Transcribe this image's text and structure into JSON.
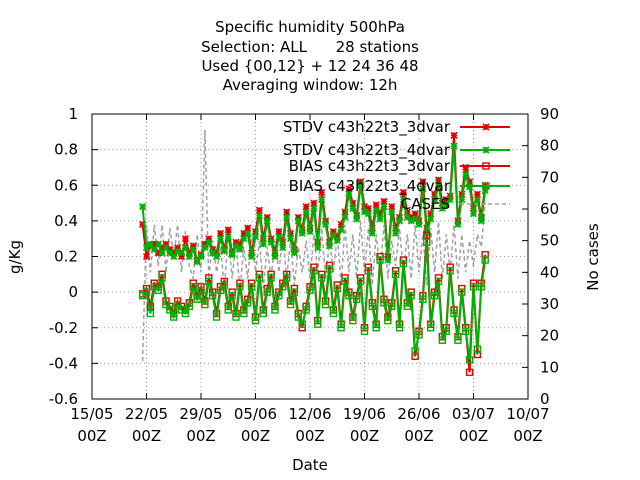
{
  "chart_data": {
    "type": "line",
    "title_lines": [
      "Specific humidity 500hPa",
      "Selection: ALL      28 stations",
      "Used {00,12} + 12 24 36 48",
      "Averaging window: 12h"
    ],
    "xlabel": "Date",
    "ylabel": "g/Kg",
    "y2label": "No cases",
    "xlim": [
      0,
      56
    ],
    "ylim": [
      -0.6,
      1.0
    ],
    "y2lim": [
      0,
      90
    ],
    "x_ticks": [
      {
        "x": 0,
        "label1": "15/05",
        "label2": "00Z"
      },
      {
        "x": 7,
        "label1": "22/05",
        "label2": "00Z"
      },
      {
        "x": 14,
        "label1": "29/05",
        "label2": "00Z"
      },
      {
        "x": 21,
        "label1": "05/06",
        "label2": "00Z"
      },
      {
        "x": 28,
        "label1": "12/06",
        "label2": "00Z"
      },
      {
        "x": 35,
        "label1": "19/06",
        "label2": "00Z"
      },
      {
        "x": 42,
        "label1": "26/06",
        "label2": "00Z"
      },
      {
        "x": 49,
        "label1": "03/07",
        "label2": "00Z"
      },
      {
        "x": 56,
        "label1": "10/07",
        "label2": "00Z"
      }
    ],
    "y_ticks": [
      "-0.6",
      "-0.4",
      "-0.2",
      "0",
      "0.2",
      "0.4",
      "0.6",
      "0.8",
      "1"
    ],
    "y_tick_values": [
      -0.6,
      -0.4,
      -0.2,
      0,
      0.2,
      0.4,
      0.6,
      0.8,
      1.0
    ],
    "y2_ticks": [
      "0",
      "10",
      "20",
      "30",
      "40",
      "50",
      "60",
      "70",
      "80",
      "90"
    ],
    "y2_tick_values": [
      0,
      10,
      20,
      30,
      40,
      50,
      60,
      70,
      80,
      90
    ],
    "grid": true,
    "legend_position": "top-right",
    "series": [
      {
        "name": "STDV c43h22t3_3dvar",
        "axis": "left",
        "color": "#e00000",
        "marker": "x",
        "x": [
          6.5,
          7,
          7.5,
          8,
          8.5,
          9,
          9.5,
          10,
          10.5,
          11,
          11.5,
          12,
          12.5,
          13,
          13.5,
          14,
          14.5,
          15,
          15.5,
          16,
          16.5,
          17,
          17.5,
          18,
          18.5,
          19,
          19.5,
          20,
          20.5,
          21,
          21.5,
          22,
          22.5,
          23,
          23.5,
          24,
          24.5,
          25,
          25.5,
          26,
          26.5,
          27,
          27.5,
          28,
          28.5,
          29,
          29.5,
          30,
          30.5,
          31,
          31.5,
          32,
          32.5,
          33,
          33.5,
          34,
          34.5,
          35,
          35.5,
          36,
          36.5,
          37,
          37.5,
          38,
          38.5,
          39,
          39.5,
          40,
          40.5,
          41,
          41.5,
          42,
          42.5,
          43,
          43.5,
          44,
          44.5,
          45,
          45.5,
          46,
          46.5,
          47,
          47.5,
          48,
          48.5,
          49,
          49.5,
          50,
          50.5
        ],
        "values": [
          0.38,
          0.2,
          0.26,
          0.27,
          0.22,
          0.25,
          0.27,
          0.24,
          0.22,
          0.25,
          0.2,
          0.3,
          0.22,
          0.26,
          0.18,
          0.21,
          0.27,
          0.3,
          0.24,
          0.22,
          0.33,
          0.24,
          0.35,
          0.22,
          0.28,
          0.27,
          0.33,
          0.36,
          0.22,
          0.34,
          0.46,
          0.3,
          0.42,
          0.3,
          0.22,
          0.34,
          0.28,
          0.45,
          0.33,
          0.24,
          0.42,
          0.35,
          0.48,
          0.36,
          0.5,
          0.28,
          0.56,
          0.4,
          0.28,
          0.34,
          0.31,
          0.38,
          0.45,
          0.58,
          0.5,
          0.43,
          0.62,
          0.48,
          0.47,
          0.36,
          0.49,
          0.44,
          0.51,
          0.2,
          0.48,
          0.36,
          0.42,
          0.56,
          0.45,
          0.42,
          0.44,
          0.4,
          0.62,
          0.36,
          0.44,
          0.55,
          0.63,
          0.5,
          0.52,
          0.54,
          0.88,
          0.4,
          0.55,
          0.7,
          0.62,
          0.47,
          0.55,
          0.42,
          0.6
        ]
      },
      {
        "name": "STDV c43h22t3_4dvar",
        "axis": "left",
        "color": "#00b000",
        "marker": "x",
        "x": [
          6.5,
          7,
          7.5,
          8,
          8.5,
          9,
          9.5,
          10,
          10.5,
          11,
          11.5,
          12,
          12.5,
          13,
          13.5,
          14,
          14.5,
          15,
          15.5,
          16,
          16.5,
          17,
          17.5,
          18,
          18.5,
          19,
          19.5,
          20,
          20.5,
          21,
          21.5,
          22,
          22.5,
          23,
          23.5,
          24,
          24.5,
          25,
          25.5,
          26,
          26.5,
          27,
          27.5,
          28,
          28.5,
          29,
          29.5,
          30,
          30.5,
          31,
          31.5,
          32,
          32.5,
          33,
          33.5,
          34,
          34.5,
          35,
          35.5,
          36,
          36.5,
          37,
          37.5,
          38,
          38.5,
          39,
          39.5,
          40,
          40.5,
          41,
          41.5,
          42,
          42.5,
          43,
          43.5,
          44,
          44.5,
          45,
          45.5,
          46,
          46.5,
          47,
          47.5,
          48,
          48.5,
          49,
          49.5,
          50,
          50.5
        ],
        "values": [
          0.48,
          0.25,
          0.27,
          0.24,
          0.27,
          0.22,
          0.25,
          0.22,
          0.2,
          0.23,
          0.22,
          0.25,
          0.2,
          0.24,
          0.17,
          0.2,
          0.25,
          0.28,
          0.22,
          0.2,
          0.3,
          0.23,
          0.31,
          0.21,
          0.26,
          0.24,
          0.3,
          0.33,
          0.2,
          0.31,
          0.43,
          0.27,
          0.4,
          0.28,
          0.2,
          0.31,
          0.25,
          0.42,
          0.3,
          0.22,
          0.4,
          0.33,
          0.45,
          0.34,
          0.47,
          0.25,
          0.52,
          0.38,
          0.26,
          0.32,
          0.29,
          0.35,
          0.42,
          0.55,
          0.47,
          0.41,
          0.6,
          0.45,
          0.44,
          0.33,
          0.46,
          0.41,
          0.48,
          0.18,
          0.45,
          0.33,
          0.4,
          0.52,
          0.42,
          0.4,
          0.41,
          0.38,
          0.58,
          0.33,
          0.41,
          0.52,
          0.6,
          0.47,
          0.49,
          0.52,
          0.82,
          0.38,
          0.52,
          0.66,
          0.59,
          0.44,
          0.52,
          0.4,
          0.57
        ]
      },
      {
        "name": "BIAS c43h22t3_3dvar",
        "axis": "left",
        "color": "#e00000",
        "marker": "square",
        "x": [
          6.5,
          7,
          7.5,
          8,
          8.5,
          9,
          9.5,
          10,
          10.5,
          11,
          11.5,
          12,
          12.5,
          13,
          13.5,
          14,
          14.5,
          15,
          15.5,
          16,
          16.5,
          17,
          17.5,
          18,
          18.5,
          19,
          19.5,
          20,
          20.5,
          21,
          21.5,
          22,
          22.5,
          23,
          23.5,
          24,
          24.5,
          25,
          25.5,
          26,
          26.5,
          27,
          27.5,
          28,
          28.5,
          29,
          29.5,
          30,
          30.5,
          31,
          31.5,
          32,
          32.5,
          33,
          33.5,
          34,
          34.5,
          35,
          35.5,
          36,
          36.5,
          37,
          37.5,
          38,
          38.5,
          39,
          39.5,
          40,
          40.5,
          41,
          41.5,
          42,
          42.5,
          43,
          43.5,
          44,
          44.5,
          45,
          45.5,
          46,
          46.5,
          47,
          47.5,
          48,
          48.5,
          49,
          49.5,
          50,
          50.5
        ],
        "values": [
          -0.01,
          0.02,
          -0.08,
          0.05,
          0.03,
          0.1,
          -0.05,
          -0.08,
          -0.12,
          -0.05,
          -0.08,
          -0.1,
          -0.06,
          0.05,
          -0.02,
          0.03,
          -0.05,
          0.08,
          0.0,
          -0.12,
          0.03,
          0.06,
          -0.08,
          0.0,
          -0.12,
          0.05,
          -0.1,
          -0.04,
          0.05,
          -0.14,
          0.1,
          -0.1,
          0.02,
          0.1,
          -0.08,
          0.0,
          0.05,
          0.1,
          -0.05,
          0.02,
          -0.12,
          -0.2,
          -0.08,
          0.03,
          0.14,
          -0.16,
          0.1,
          -0.05,
          0.15,
          -0.1,
          0.04,
          -0.18,
          0.08,
          0.0,
          -0.14,
          -0.02,
          0.08,
          -0.2,
          0.14,
          -0.06,
          -0.18,
          0.2,
          -0.04,
          -0.14,
          -0.06,
          0.12,
          -0.18,
          0.18,
          -0.06,
          0.0,
          -0.36,
          -0.22,
          -0.02,
          0.32,
          -0.18,
          0.0,
          0.08,
          -0.25,
          -0.2,
          0.14,
          -0.1,
          -0.25,
          0.02,
          -0.2,
          -0.45,
          0.05,
          -0.35,
          0.05,
          0.21
        ]
      },
      {
        "name": "BIAS c43h22t3_4dvar",
        "axis": "left",
        "color": "#00b000",
        "marker": "square",
        "x": [
          6.5,
          7,
          7.5,
          8,
          8.5,
          9,
          9.5,
          10,
          10.5,
          11,
          11.5,
          12,
          12.5,
          13,
          13.5,
          14,
          14.5,
          15,
          15.5,
          16,
          16.5,
          17,
          17.5,
          18,
          18.5,
          19,
          19.5,
          20,
          20.5,
          21,
          21.5,
          22,
          22.5,
          23,
          23.5,
          24,
          24.5,
          25,
          25.5,
          26,
          26.5,
          27,
          27.5,
          28,
          28.5,
          29,
          29.5,
          30,
          30.5,
          31,
          31.5,
          32,
          32.5,
          33,
          33.5,
          34,
          34.5,
          35,
          35.5,
          36,
          36.5,
          37,
          37.5,
          38,
          38.5,
          39,
          39.5,
          40,
          40.5,
          41,
          41.5,
          42,
          42.5,
          43,
          43.5,
          44,
          44.5,
          45,
          45.5,
          46,
          46.5,
          47,
          47.5,
          48,
          48.5,
          49,
          49.5,
          50,
          50.5
        ],
        "values": [
          -0.02,
          0.0,
          -0.12,
          0.03,
          0.01,
          0.08,
          -0.07,
          -0.1,
          -0.14,
          -0.07,
          -0.1,
          -0.12,
          -0.08,
          0.03,
          -0.04,
          0.01,
          -0.07,
          0.06,
          -0.02,
          -0.14,
          0.01,
          0.04,
          -0.1,
          -0.02,
          -0.14,
          0.03,
          -0.12,
          -0.06,
          0.03,
          -0.16,
          0.08,
          -0.12,
          0.0,
          0.08,
          -0.1,
          -0.02,
          0.03,
          0.08,
          -0.07,
          0.0,
          -0.14,
          -0.18,
          -0.1,
          0.01,
          0.12,
          -0.18,
          0.08,
          -0.07,
          0.13,
          -0.12,
          0.02,
          -0.2,
          0.06,
          -0.02,
          -0.16,
          -0.04,
          0.06,
          -0.22,
          0.12,
          -0.08,
          -0.2,
          0.18,
          -0.06,
          -0.16,
          -0.08,
          0.1,
          -0.2,
          0.16,
          -0.08,
          -0.02,
          -0.33,
          -0.24,
          -0.04,
          0.28,
          -0.2,
          -0.02,
          0.06,
          -0.27,
          -0.22,
          0.12,
          -0.12,
          -0.27,
          0.0,
          -0.22,
          -0.38,
          0.03,
          -0.32,
          0.03,
          0.18
        ]
      },
      {
        "name": "CASES",
        "axis": "right",
        "color": "#a0a0a0",
        "dashed": true,
        "x": [
          6.5,
          7,
          7.5,
          8,
          8.5,
          9,
          9.5,
          10,
          10.5,
          11,
          11.5,
          12,
          12.5,
          13,
          13.5,
          14,
          14.5,
          15,
          15.5,
          16,
          16.5,
          17,
          17.5,
          18,
          18.5,
          19,
          19.5,
          20,
          20.5,
          21,
          21.5,
          22,
          22.5,
          23,
          23.5,
          24,
          24.5,
          25,
          25.5,
          26,
          26.5,
          27,
          27.5,
          28,
          28.5,
          29,
          29.5,
          30,
          30.5,
          31,
          31.5,
          32,
          32.5,
          33,
          33.5,
          34,
          34.5,
          35,
          35.5,
          36,
          36.5,
          37,
          37.5,
          38,
          38.5,
          39,
          39.5,
          40,
          40.5,
          41,
          41.5,
          42,
          42.5,
          43,
          43.5,
          44,
          44.5,
          45,
          45.5,
          46,
          46.5,
          47,
          47.5,
          48,
          48.5,
          49,
          49.5,
          50,
          50.5
        ],
        "values": [
          12,
          55,
          40,
          55,
          42,
          55,
          40,
          54,
          45,
          55,
          40,
          53,
          42,
          38,
          52,
          40,
          85,
          38,
          50,
          40,
          48,
          35,
          52,
          38,
          50,
          34,
          48,
          38,
          52,
          40,
          50,
          35,
          48,
          38,
          50,
          40,
          52,
          38,
          50,
          36,
          48,
          40,
          50,
          38,
          52,
          40,
          54,
          38,
          50,
          40,
          52,
          36,
          55,
          40,
          52,
          38,
          56,
          40,
          54,
          36,
          52,
          40,
          55,
          38,
          50,
          42,
          54,
          40,
          52,
          38,
          55,
          40,
          52,
          36,
          54,
          40,
          56,
          38,
          52,
          40,
          55,
          38,
          52,
          40,
          50,
          42,
          52,
          48,
          62
        ]
      }
    ]
  }
}
